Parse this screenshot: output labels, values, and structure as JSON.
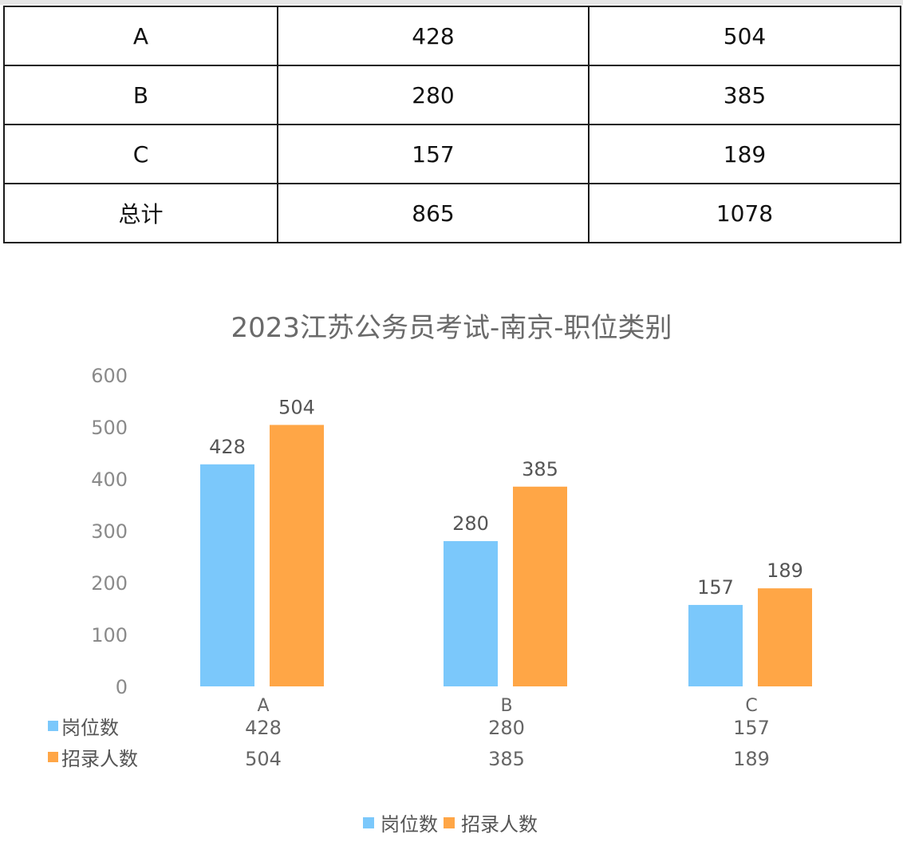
{
  "table": {
    "rows": [
      [
        "A",
        "428",
        "504"
      ],
      [
        "B",
        "280",
        "385"
      ],
      [
        "C",
        "157",
        "189"
      ],
      [
        "总计",
        "865",
        "1078"
      ]
    ]
  },
  "chart_data": {
    "type": "bar",
    "title": "2023江苏公务员考试-南京-职位类别",
    "categories": [
      "A",
      "B",
      "C"
    ],
    "series": [
      {
        "name": "岗位数",
        "values": [
          428,
          280,
          157
        ],
        "color": "#7bc8fb"
      },
      {
        "name": "招录人数",
        "values": [
          504,
          385,
          189
        ],
        "color": "#ffa646"
      }
    ],
    "ylim": [
      0,
      600
    ],
    "yticks": [
      0,
      100,
      200,
      300,
      400,
      500,
      600
    ],
    "grid": false,
    "legend": "bottom",
    "data_table": true
  }
}
